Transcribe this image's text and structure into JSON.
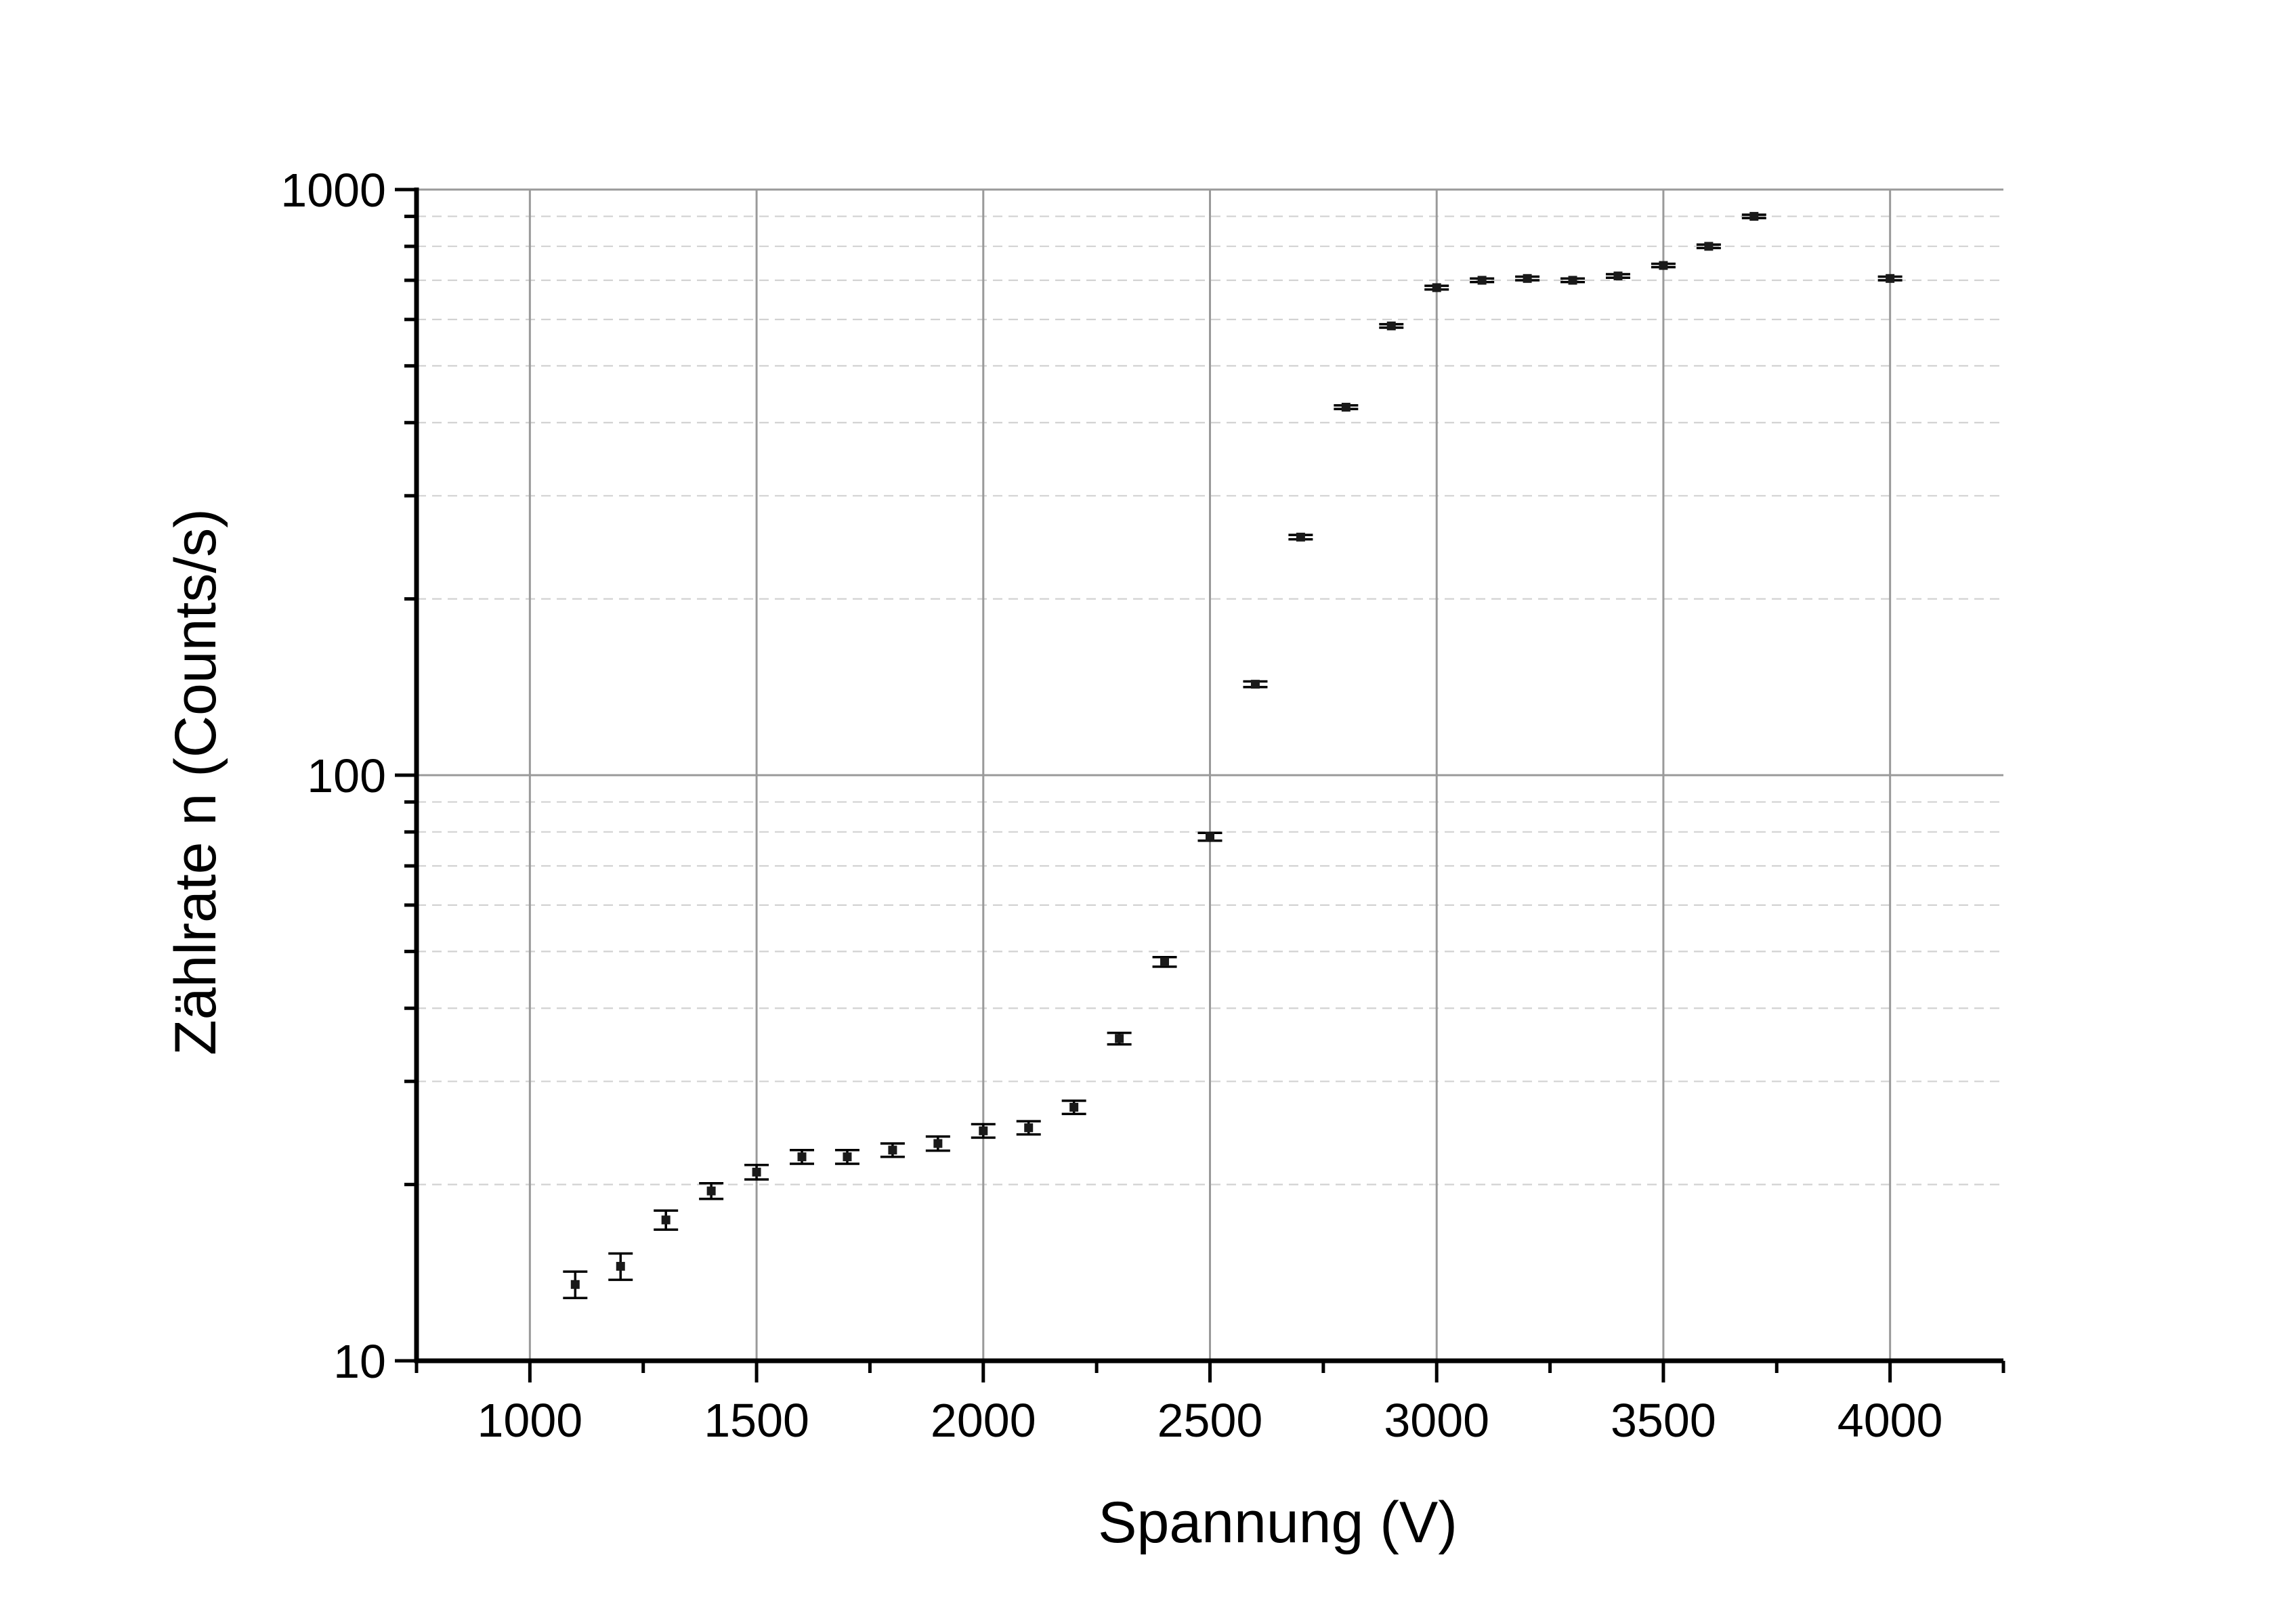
{
  "chart_data": {
    "type": "scatter",
    "title": "",
    "xlabel": "Spannung (V)",
    "ylabel": "Zählrate n (Counts/s)",
    "xlim": [
      750,
      4250
    ],
    "ylim": [
      10,
      1000
    ],
    "yscale": "log",
    "x_ticks": [
      1000,
      1500,
      2000,
      2500,
      3000,
      3500,
      4000
    ],
    "x_tick_labels": [
      "1000",
      "1500",
      "2000",
      "2500",
      "3000",
      "3500",
      "4000"
    ],
    "y_ticks": [
      10,
      100,
      1000
    ],
    "y_tick_labels": [
      "10",
      "100",
      "1000"
    ],
    "grid": true,
    "series": [
      {
        "name": "Zählrate",
        "marker": "square",
        "color": "#1a1a1a",
        "x": [
          1100,
          1200,
          1300,
          1400,
          1500,
          1600,
          1700,
          1800,
          1900,
          2000,
          2100,
          2200,
          2300,
          2400,
          2500,
          2600,
          2700,
          2800,
          2900,
          3000,
          3100,
          3200,
          3300,
          3400,
          3500,
          3600,
          3700,
          4000
        ],
        "y": [
          13.5,
          14.5,
          17.4,
          19.5,
          21.0,
          22.3,
          22.3,
          22.9,
          23.5,
          24.7,
          25.0,
          27.1,
          35.5,
          48.0,
          78.5,
          143,
          255,
          425,
          585,
          680,
          700,
          705,
          700,
          712,
          742,
          800,
          900,
          705
        ],
        "yerr": [
          0.7,
          0.75,
          0.65,
          0.6,
          0.6,
          0.6,
          0.6,
          0.6,
          0.65,
          0.65,
          0.65,
          0.7,
          0.8,
          0.9,
          1.2,
          1.6,
          2.2,
          3.0,
          4.0,
          5.0,
          5.0,
          5.0,
          5.0,
          5.0,
          5.0,
          5.5,
          6.0,
          5.0
        ]
      }
    ]
  }
}
